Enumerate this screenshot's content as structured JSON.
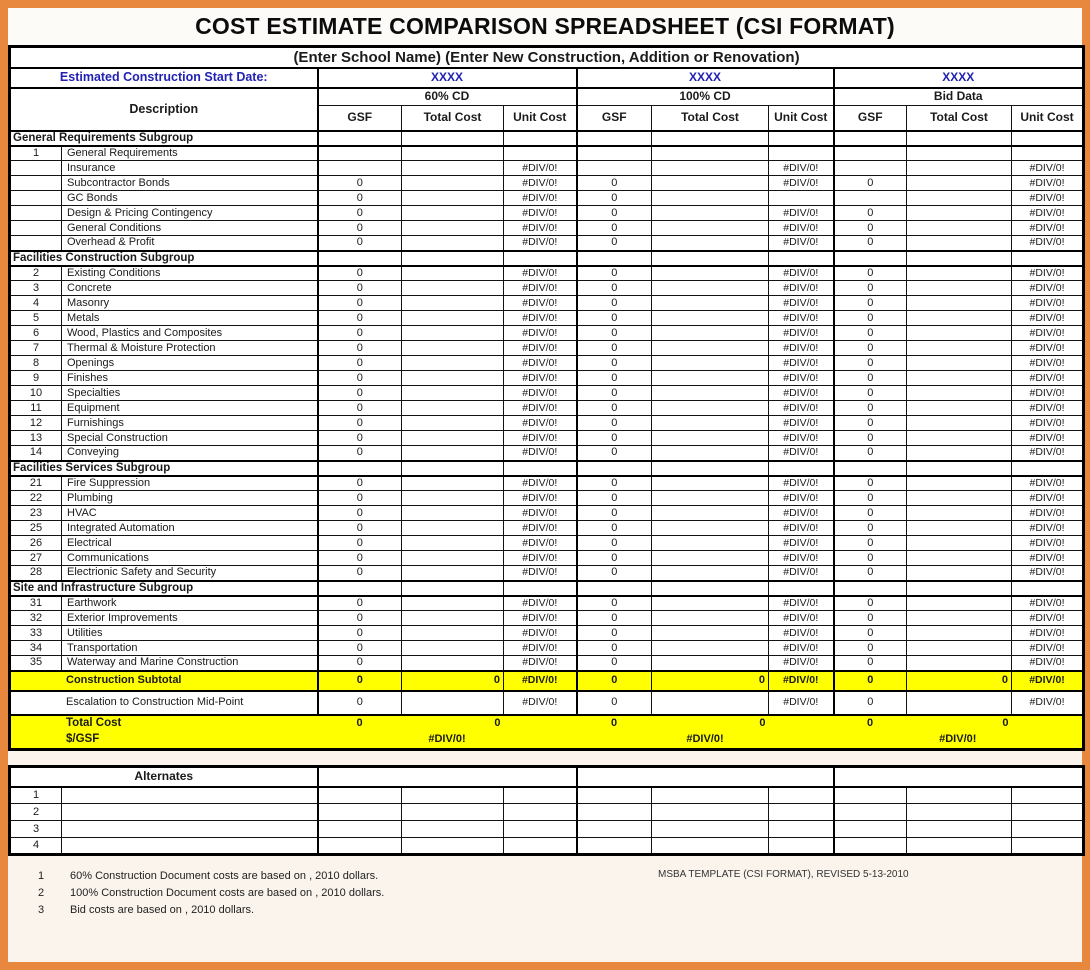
{
  "title": "COST ESTIMATE COMPARISON SPREADSHEET (CSI FORMAT)",
  "subtitle": "(Enter School Name) (Enter New Construction, Addition or Renovation)",
  "start_date": {
    "label": "Estimated Construction Start Date:",
    "values": [
      "XXXX",
      "XXXX",
      "XXXX"
    ]
  },
  "columns": {
    "description_label": "Description",
    "groups": [
      "60% CD",
      "100% CD",
      "Bid Data"
    ],
    "sub_headers": [
      "GSF",
      "Total Cost",
      "Unit Cost"
    ]
  },
  "rows": [
    {
      "type": "subgroup",
      "label": "General Requirements Subgroup",
      "cells": [
        "",
        "",
        "",
        "",
        "",
        "",
        "",
        "",
        ""
      ]
    },
    {
      "type": "item",
      "num": "1",
      "label": "General Requirements",
      "cells": [
        "",
        "",
        "",
        "",
        "",
        "",
        "",
        "",
        ""
      ]
    },
    {
      "type": "item",
      "num": "",
      "label": "Insurance",
      "cells": [
        "",
        "",
        "#DIV/0!",
        "",
        "",
        "#DIV/0!",
        "",
        "",
        "#DIV/0!"
      ]
    },
    {
      "type": "item",
      "num": "",
      "label": "Subcontractor Bonds",
      "cells": [
        "0",
        "",
        "#DIV/0!",
        "0",
        "",
        "#DIV/0!",
        "0",
        "",
        "#DIV/0!"
      ]
    },
    {
      "type": "item",
      "num": "",
      "label": "GC Bonds",
      "cells": [
        "0",
        "",
        "#DIV/0!",
        "0",
        "",
        "",
        "",
        "",
        "#DIV/0!"
      ]
    },
    {
      "type": "item",
      "num": "",
      "label": "Design & Pricing Contingency",
      "cells": [
        "0",
        "",
        "#DIV/0!",
        "0",
        "",
        "#DIV/0!",
        "0",
        "",
        "#DIV/0!"
      ]
    },
    {
      "type": "item",
      "num": "",
      "label": "General Conditions",
      "cells": [
        "0",
        "",
        "#DIV/0!",
        "0",
        "",
        "#DIV/0!",
        "0",
        "",
        "#DIV/0!"
      ]
    },
    {
      "type": "item",
      "num": "",
      "label": "Overhead & Profit",
      "cells": [
        "0",
        "",
        "#DIV/0!",
        "0",
        "",
        "#DIV/0!",
        "0",
        "",
        "#DIV/0!"
      ]
    },
    {
      "type": "subgroup",
      "label": "Facilities Construction Subgroup",
      "cells": [
        "",
        "",
        "",
        "",
        "",
        "",
        "",
        "",
        ""
      ]
    },
    {
      "type": "item",
      "num": "2",
      "label": "Existing Conditions",
      "cells": [
        "0",
        "",
        "#DIV/0!",
        "0",
        "",
        "#DIV/0!",
        "0",
        "",
        "#DIV/0!"
      ]
    },
    {
      "type": "item",
      "num": "3",
      "label": "Concrete",
      "cells": [
        "0",
        "",
        "#DIV/0!",
        "0",
        "",
        "#DIV/0!",
        "0",
        "",
        "#DIV/0!"
      ]
    },
    {
      "type": "item",
      "num": "4",
      "label": "Masonry",
      "cells": [
        "0",
        "",
        "#DIV/0!",
        "0",
        "",
        "#DIV/0!",
        "0",
        "",
        "#DIV/0!"
      ]
    },
    {
      "type": "item",
      "num": "5",
      "label": "Metals",
      "cells": [
        "0",
        "",
        "#DIV/0!",
        "0",
        "",
        "#DIV/0!",
        "0",
        "",
        "#DIV/0!"
      ]
    },
    {
      "type": "item",
      "num": "6",
      "label": "Wood, Plastics and Composites",
      "cells": [
        "0",
        "",
        "#DIV/0!",
        "0",
        "",
        "#DIV/0!",
        "0",
        "",
        "#DIV/0!"
      ]
    },
    {
      "type": "item",
      "num": "7",
      "label": "Thermal & Moisture Protection",
      "cells": [
        "0",
        "",
        "#DIV/0!",
        "0",
        "",
        "#DIV/0!",
        "0",
        "",
        "#DIV/0!"
      ]
    },
    {
      "type": "item",
      "num": "8",
      "label": "Openings",
      "cells": [
        "0",
        "",
        "#DIV/0!",
        "0",
        "",
        "#DIV/0!",
        "0",
        "",
        "#DIV/0!"
      ]
    },
    {
      "type": "item",
      "num": "9",
      "label": "Finishes",
      "cells": [
        "0",
        "",
        "#DIV/0!",
        "0",
        "",
        "#DIV/0!",
        "0",
        "",
        "#DIV/0!"
      ]
    },
    {
      "type": "item",
      "num": "10",
      "label": "Specialties",
      "cells": [
        "0",
        "",
        "#DIV/0!",
        "0",
        "",
        "#DIV/0!",
        "0",
        "",
        "#DIV/0!"
      ]
    },
    {
      "type": "item",
      "num": "11",
      "label": "Equipment",
      "cells": [
        "0",
        "",
        "#DIV/0!",
        "0",
        "",
        "#DIV/0!",
        "0",
        "",
        "#DIV/0!"
      ]
    },
    {
      "type": "item",
      "num": "12",
      "label": "Furnishings",
      "cells": [
        "0",
        "",
        "#DIV/0!",
        "0",
        "",
        "#DIV/0!",
        "0",
        "",
        "#DIV/0!"
      ]
    },
    {
      "type": "item",
      "num": "13",
      "label": "Special Construction",
      "cells": [
        "0",
        "",
        "#DIV/0!",
        "0",
        "",
        "#DIV/0!",
        "0",
        "",
        "#DIV/0!"
      ]
    },
    {
      "type": "item",
      "num": "14",
      "label": "Conveying",
      "cells": [
        "0",
        "",
        "#DIV/0!",
        "0",
        "",
        "#DIV/0!",
        "0",
        "",
        "#DIV/0!"
      ]
    },
    {
      "type": "subgroup",
      "label": "Facilities Services Subgroup",
      "cells": [
        "",
        "",
        "",
        "",
        "",
        "",
        "",
        "",
        ""
      ]
    },
    {
      "type": "item",
      "num": "21",
      "label": "Fire Suppression",
      "cells": [
        "0",
        "",
        "#DIV/0!",
        "0",
        "",
        "#DIV/0!",
        "0",
        "",
        "#DIV/0!"
      ]
    },
    {
      "type": "item",
      "num": "22",
      "label": "Plumbing",
      "cells": [
        "0",
        "",
        "#DIV/0!",
        "0",
        "",
        "#DIV/0!",
        "0",
        "",
        "#DIV/0!"
      ]
    },
    {
      "type": "item",
      "num": "23",
      "label": "HVAC",
      "cells": [
        "0",
        "",
        "#DIV/0!",
        "0",
        "",
        "#DIV/0!",
        "0",
        "",
        "#DIV/0!"
      ]
    },
    {
      "type": "item",
      "num": "25",
      "label": "Integrated Automation",
      "cells": [
        "0",
        "",
        "#DIV/0!",
        "0",
        "",
        "#DIV/0!",
        "0",
        "",
        "#DIV/0!"
      ]
    },
    {
      "type": "item",
      "num": "26",
      "label": "Electrical",
      "cells": [
        "0",
        "",
        "#DIV/0!",
        "0",
        "",
        "#DIV/0!",
        "0",
        "",
        "#DIV/0!"
      ]
    },
    {
      "type": "item",
      "num": "27",
      "label": "Communications",
      "cells": [
        "0",
        "",
        "#DIV/0!",
        "0",
        "",
        "#DIV/0!",
        "0",
        "",
        "#DIV/0!"
      ]
    },
    {
      "type": "item",
      "num": "28",
      "label": "Electrionic Safety and Security",
      "cells": [
        "0",
        "",
        "#DIV/0!",
        "0",
        "",
        "#DIV/0!",
        "0",
        "",
        "#DIV/0!"
      ]
    },
    {
      "type": "subgroup",
      "label": "Site and Infrastructure Subgroup",
      "cells": [
        "",
        "",
        "",
        "",
        "",
        "",
        "",
        "",
        ""
      ]
    },
    {
      "type": "item",
      "num": "31",
      "label": "Earthwork",
      "cells": [
        "0",
        "",
        "#DIV/0!",
        "0",
        "",
        "#DIV/0!",
        "0",
        "",
        "#DIV/0!"
      ]
    },
    {
      "type": "item",
      "num": "32",
      "label": "Exterior Improvements",
      "cells": [
        "0",
        "",
        "#DIV/0!",
        "0",
        "",
        "#DIV/0!",
        "0",
        "",
        "#DIV/0!"
      ]
    },
    {
      "type": "item",
      "num": "33",
      "label": "Utilities",
      "cells": [
        "0",
        "",
        "#DIV/0!",
        "0",
        "",
        "#DIV/0!",
        "0",
        "",
        "#DIV/0!"
      ]
    },
    {
      "type": "item",
      "num": "34",
      "label": "Transportation",
      "cells": [
        "0",
        "",
        "#DIV/0!",
        "0",
        "",
        "#DIV/0!",
        "0",
        "",
        "#DIV/0!"
      ]
    },
    {
      "type": "item",
      "num": "35",
      "label": "Waterway and Marine Construction",
      "cells": [
        "0",
        "",
        "#DIV/0!",
        "0",
        "",
        "#DIV/0!",
        "0",
        "",
        "#DIV/0!"
      ]
    },
    {
      "type": "subtotal",
      "num": "",
      "label": "Construction Subtotal",
      "cells": [
        "0",
        "0",
        "#DIV/0!",
        "0",
        "0",
        "#DIV/0!",
        "0",
        "0",
        "#DIV/0!"
      ]
    },
    {
      "type": "escalation",
      "num": "",
      "label": "Escalation to Construction Mid-Point",
      "cells": [
        "0",
        "",
        "#DIV/0!",
        "0",
        "",
        "#DIV/0!",
        "0",
        "",
        "#DIV/0!"
      ]
    }
  ],
  "totals": {
    "total_cost_label": "Total Cost",
    "total_cost_cells": [
      "0",
      "0",
      "",
      "0",
      "0",
      "",
      "0",
      "0",
      ""
    ],
    "per_gsf_label": "$/GSF",
    "per_gsf_values": [
      "#DIV/0!",
      "#DIV/0!",
      "#DIV/0!"
    ]
  },
  "alternates": {
    "header": "Alternates",
    "row_numbers": [
      "1",
      "2",
      "3",
      "4"
    ]
  },
  "footnotes": [
    {
      "num": "1",
      "text": "60% Construction Document costs are based on , 2010 dollars."
    },
    {
      "num": "2",
      "text": "100% Construction Document costs are based on , 2010 dollars."
    },
    {
      "num": "3",
      "text": "Bid costs are based on , 2010 dollars."
    }
  ],
  "revision_note": "MSBA TEMPLATE (CSI FORMAT), REVISED  5-13-2010",
  "colors": {
    "frame_orange": "#E8873E",
    "highlight_yellow": "#FFFF00",
    "accent_blue": "#2121B5"
  }
}
